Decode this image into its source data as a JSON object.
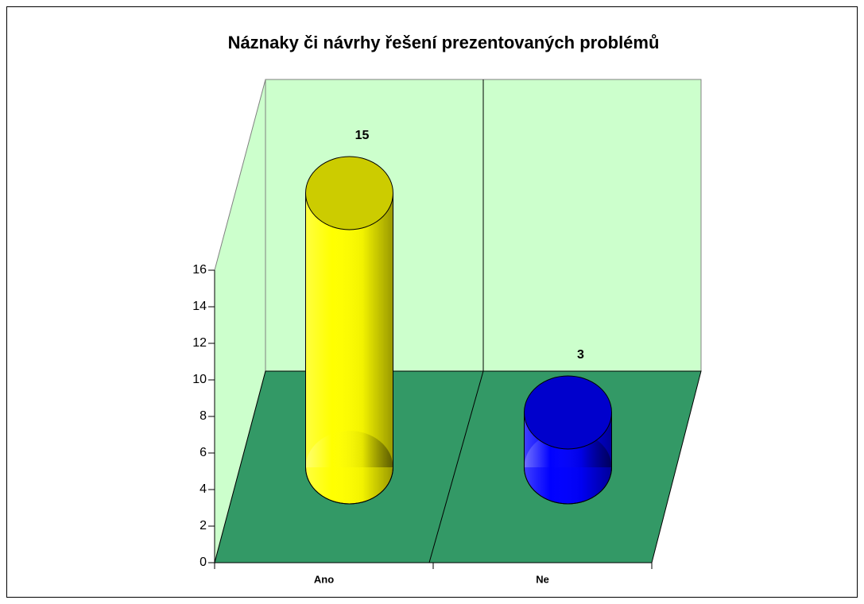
{
  "chart_data": {
    "type": "bar3d-cylinder",
    "title": "Náznaky či návrhy řešení prezentovaných problémů",
    "categories": [
      "Ano",
      "Ne"
    ],
    "values": [
      15,
      3
    ],
    "colors": [
      "#ffff00",
      "#0000ff"
    ],
    "top_colors": [
      "#cccc00",
      "#0000cc"
    ],
    "ylim": [
      0,
      16
    ],
    "yticks": [
      0,
      2,
      4,
      6,
      8,
      10,
      12,
      14,
      16
    ]
  }
}
